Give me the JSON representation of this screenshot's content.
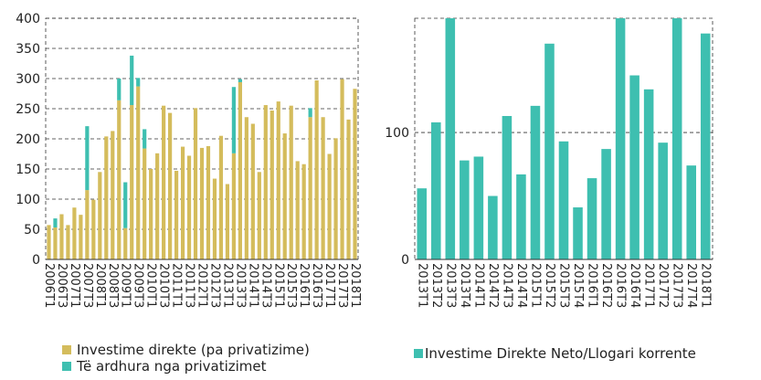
{
  "chart_data": [
    {
      "type": "bar",
      "stacked": true,
      "grid": true,
      "ylim": [
        0,
        400
      ],
      "yticks": [
        0,
        50,
        100,
        150,
        200,
        250,
        300,
        350,
        400
      ],
      "categories": [
        "2006T1",
        "2006T2",
        "2006T3",
        "2006T4",
        "2007T1",
        "2007T2",
        "2007T3",
        "2007T4",
        "2008T1",
        "2008T2",
        "2008T3",
        "2008T4",
        "2009T1",
        "2009T2",
        "2009T3",
        "2009T4",
        "2010T1",
        "2010T2",
        "2010T3",
        "2010T4",
        "2011T1",
        "2011T2",
        "2011T3",
        "2011T4",
        "2012T1",
        "2012T2",
        "2012T3",
        "2012T4",
        "2013T1",
        "2013T2",
        "2013T3",
        "2013T4",
        "2014T1",
        "2014T2",
        "2014T3",
        "2014T4",
        "2015T1",
        "2015T2",
        "2015T3",
        "2015T4",
        "2016T1",
        "2016T2",
        "2016T3",
        "2016T4",
        "2017T1",
        "2017T2",
        "2017T3",
        "2017T4",
        "2018T1"
      ],
      "visible_tick_labels": [
        "2006T1",
        "2006T3",
        "2007T1",
        "2007T3",
        "2008T1",
        "2008T3",
        "2009T1",
        "2009T3",
        "2010T1",
        "2010T3",
        "2011T1",
        "2011T3",
        "2012T1",
        "2012T3",
        "2013T1",
        "2013T3",
        "2014T1",
        "2014T3",
        "2015T1",
        "2015T3",
        "2016T1",
        "2016T3",
        "2017T1",
        "2017T3",
        "2018T1"
      ],
      "series": [
        {
          "name": "Investime direkte (pa privatizime)",
          "color": "#d4bc5c",
          "values": [
            57,
            53,
            75,
            57,
            86,
            74,
            115,
            99,
            145,
            204,
            213,
            264,
            52,
            256,
            287,
            184,
            150,
            176,
            255,
            243,
            147,
            187,
            172,
            251,
            185,
            188,
            134,
            205,
            125,
            176,
            294,
            236,
            225,
            145,
            256,
            247,
            262,
            209,
            255,
            163,
            158,
            236,
            297,
            236,
            175,
            201,
            299,
            232,
            283
          ]
        },
        {
          "name": "Të ardhura nga privatizimet",
          "color": "#3ebfb0",
          "values": [
            0,
            15,
            0,
            0,
            0,
            0,
            106,
            0,
            0,
            0,
            0,
            36,
            76,
            82,
            14,
            32,
            0,
            0,
            0,
            0,
            0,
            0,
            0,
            0,
            0,
            0,
            0,
            0,
            0,
            110,
            5,
            0,
            0,
            0,
            0,
            0,
            0,
            0,
            0,
            0,
            0,
            15,
            0,
            0,
            0,
            0,
            0,
            0,
            0
          ]
        }
      ]
    },
    {
      "type": "bar",
      "grid": true,
      "ylim": [
        0,
        190
      ],
      "yticks": [
        0,
        100
      ],
      "categories": [
        "2013T1",
        "2013T2",
        "2013T3",
        "2013T4",
        "2014T1",
        "2014T2",
        "2014T3",
        "2014T4",
        "2015T1",
        "2015T2",
        "2015T3",
        "2015T4",
        "2016T1",
        "2016T2",
        "2016T3",
        "2016T4",
        "2017T1",
        "2017T2",
        "2017T3",
        "2017T4",
        "2018T1"
      ],
      "series": [
        {
          "name": "Investime Direkte Neto/Llogari korrente",
          "color": "#3ebfb0",
          "values": [
            56,
            108,
            190,
            78,
            81,
            50,
            113,
            67,
            121,
            170,
            93,
            41,
            64,
            87,
            190,
            145,
            134,
            92,
            190,
            74,
            178
          ]
        }
      ]
    }
  ]
}
